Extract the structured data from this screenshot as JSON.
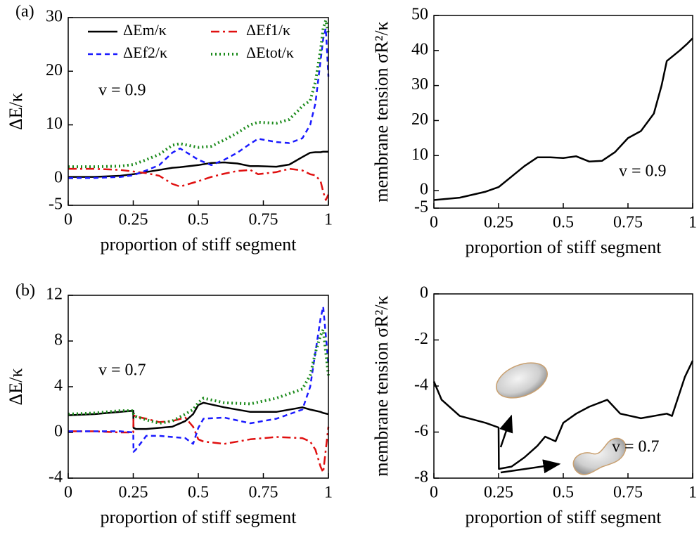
{
  "chart_data": [
    {
      "type": "line",
      "panel_label": "(a)",
      "ylabel": "ΔE/κ",
      "xlabel": "proportion of stiff segment",
      "annotation": "v = 0.9",
      "x": [
        0,
        0.1,
        0.2,
        0.25,
        0.3,
        0.35,
        0.4,
        0.43,
        0.5,
        0.55,
        0.6,
        0.65,
        0.7,
        0.73,
        0.8,
        0.85,
        0.9,
        0.93,
        0.95,
        0.97,
        0.98,
        0.99,
        1
      ],
      "series": [
        {
          "name": "ΔEm/κ",
          "color": "#000000",
          "dash": "solid",
          "values": [
            0.3,
            0.3,
            0.5,
            0.8,
            1.2,
            1.6,
            2.0,
            2.1,
            2.5,
            2.9,
            3.0,
            2.8,
            2.3,
            2.3,
            2.2,
            2.6,
            4.0,
            4.8,
            4.9,
            4.9,
            5.0,
            5.0,
            5.0
          ]
        },
        {
          "name": "ΔEf1/κ",
          "color": "#e01010",
          "dash": "dashdot",
          "values": [
            1.8,
            1.8,
            1.6,
            1.3,
            1.0,
            0.5,
            -1.0,
            -1.5,
            -0.5,
            0.3,
            0.9,
            1.4,
            1.6,
            0.8,
            1.2,
            1.8,
            1.5,
            0.8,
            0.6,
            -0.5,
            -2.5,
            -4.0,
            -3.0
          ]
        },
        {
          "name": "ΔEf2/κ",
          "color": "#1a1aff",
          "dash": "dashed",
          "values": [
            0.1,
            0.1,
            0.3,
            0.6,
            1.5,
            2.5,
            4.8,
            5.6,
            3.5,
            2.5,
            3.5,
            4.8,
            6.5,
            7.4,
            6.8,
            6.6,
            7.5,
            10,
            14,
            22,
            26,
            28,
            19
          ]
        },
        {
          "name": "ΔEtot/κ",
          "color": "#1a8a1a",
          "dash": "dotted",
          "values": [
            2.2,
            2.2,
            2.3,
            2.6,
            3.5,
            4.5,
            6.2,
            6.5,
            5.8,
            6.0,
            7.2,
            8.5,
            10,
            10.5,
            10.3,
            11,
            13.5,
            14.5,
            18,
            24,
            28,
            29.5,
            27
          ]
        }
      ],
      "xlim": [
        0,
        1
      ],
      "xticks": [
        0,
        0.25,
        0.5,
        0.75,
        1
      ],
      "ylim": [
        -5,
        30
      ],
      "yticks": [
        -5,
        0,
        10,
        20,
        30
      ],
      "legend": "upper left"
    },
    {
      "type": "line",
      "ylabel": "membrane tension σR²/κ",
      "xlabel": "proportion of stiff segment",
      "annotation": "v = 0.9",
      "x": [
        0,
        0.1,
        0.2,
        0.25,
        0.3,
        0.35,
        0.4,
        0.45,
        0.5,
        0.55,
        0.6,
        0.65,
        0.7,
        0.75,
        0.8,
        0.85,
        0.88,
        0.9,
        0.95,
        0.98,
        1
      ],
      "values": [
        -2.7,
        -2.0,
        -0.3,
        1.0,
        4.0,
        7.0,
        9.5,
        9.5,
        9.3,
        9.8,
        8.3,
        8.5,
        11,
        15,
        17,
        22,
        30,
        37,
        40,
        42,
        43.5
      ],
      "color": "#000000",
      "xlim": [
        0,
        1
      ],
      "xticks": [
        0,
        0.25,
        0.5,
        0.75,
        1
      ],
      "ylim": [
        -5,
        50
      ],
      "yticks": [
        -5,
        0,
        10,
        20,
        30,
        40,
        50
      ]
    },
    {
      "type": "line",
      "panel_label": "(b)",
      "ylabel": "ΔE/κ",
      "xlabel": "proportion of stiff segment",
      "annotation": "v = 0.7",
      "x": [
        0,
        0.1,
        0.2,
        0.25,
        0.251,
        0.26,
        0.3,
        0.35,
        0.4,
        0.45,
        0.48,
        0.5,
        0.52,
        0.6,
        0.7,
        0.8,
        0.9,
        0.93,
        0.95,
        0.97,
        0.98,
        1
      ],
      "series": [
        {
          "color": "#000000",
          "dash": "solid",
          "values": [
            1.5,
            1.6,
            1.8,
            1.9,
            0.4,
            0.3,
            0.3,
            0.4,
            0.5,
            1.0,
            1.6,
            2.4,
            2.6,
            2.2,
            1.8,
            1.8,
            2.2,
            2.0,
            1.9,
            1.8,
            1.7,
            1.6
          ]
        },
        {
          "color": "#e01010",
          "dash": "dashdot",
          "values": [
            0.1,
            0.1,
            0.0,
            0.0,
            1.5,
            1.4,
            1.2,
            0.9,
            1.0,
            1.3,
            0.5,
            -0.6,
            -0.8,
            -1.0,
            -0.6,
            -0.4,
            -0.5,
            -0.8,
            -1.5,
            -3.0,
            -3.5,
            0.5
          ]
        },
        {
          "color": "#1a1aff",
          "dash": "dashed",
          "values": [
            0.1,
            0.1,
            0.1,
            0.0,
            -1.7,
            -1.5,
            -0.3,
            -0.3,
            -0.4,
            -0.5,
            -1.0,
            0.4,
            1.2,
            1.3,
            0.8,
            1.2,
            2.0,
            4,
            7,
            10,
            11,
            6
          ]
        },
        {
          "color": "#1a8a1a",
          "dash": "dotted",
          "values": [
            1.6,
            1.7,
            1.9,
            1.9,
            1.6,
            1.4,
            1.1,
            0.8,
            1.0,
            1.6,
            2.0,
            2.6,
            3.0,
            2.6,
            2.5,
            3.0,
            3.8,
            5,
            7,
            8.5,
            9,
            5
          ]
        }
      ],
      "xlim": [
        0,
        1
      ],
      "xticks": [
        0,
        0.25,
        0.5,
        0.75,
        1
      ],
      "ylim": [
        -4,
        12
      ],
      "yticks": [
        -4,
        0,
        4,
        8,
        12
      ]
    },
    {
      "type": "line",
      "ylabel": "membrane tension σR²/κ",
      "xlabel": "proportion of stiff segment",
      "annotation": "v = 0.7",
      "x": [
        0,
        0.03,
        0.1,
        0.2,
        0.25,
        0.251,
        0.3,
        0.35,
        0.4,
        0.43,
        0.47,
        0.5,
        0.55,
        0.6,
        0.67,
        0.72,
        0.8,
        0.9,
        0.92,
        0.97,
        1
      ],
      "values": [
        -3.8,
        -4.6,
        -5.3,
        -5.6,
        -5.8,
        -7.6,
        -7.5,
        -7.1,
        -6.6,
        -6.2,
        -6.4,
        -5.6,
        -5.2,
        -4.9,
        -4.6,
        -5.2,
        -5.4,
        -5.2,
        -5.3,
        -3.6,
        -2.9
      ],
      "color": "#000000",
      "xlim": [
        0,
        1
      ],
      "xticks": [
        0,
        0.25,
        0.5,
        0.75,
        1
      ],
      "ylim": [
        -8,
        0
      ],
      "yticks": [
        -8,
        -6,
        -4,
        -2,
        0
      ]
    }
  ]
}
